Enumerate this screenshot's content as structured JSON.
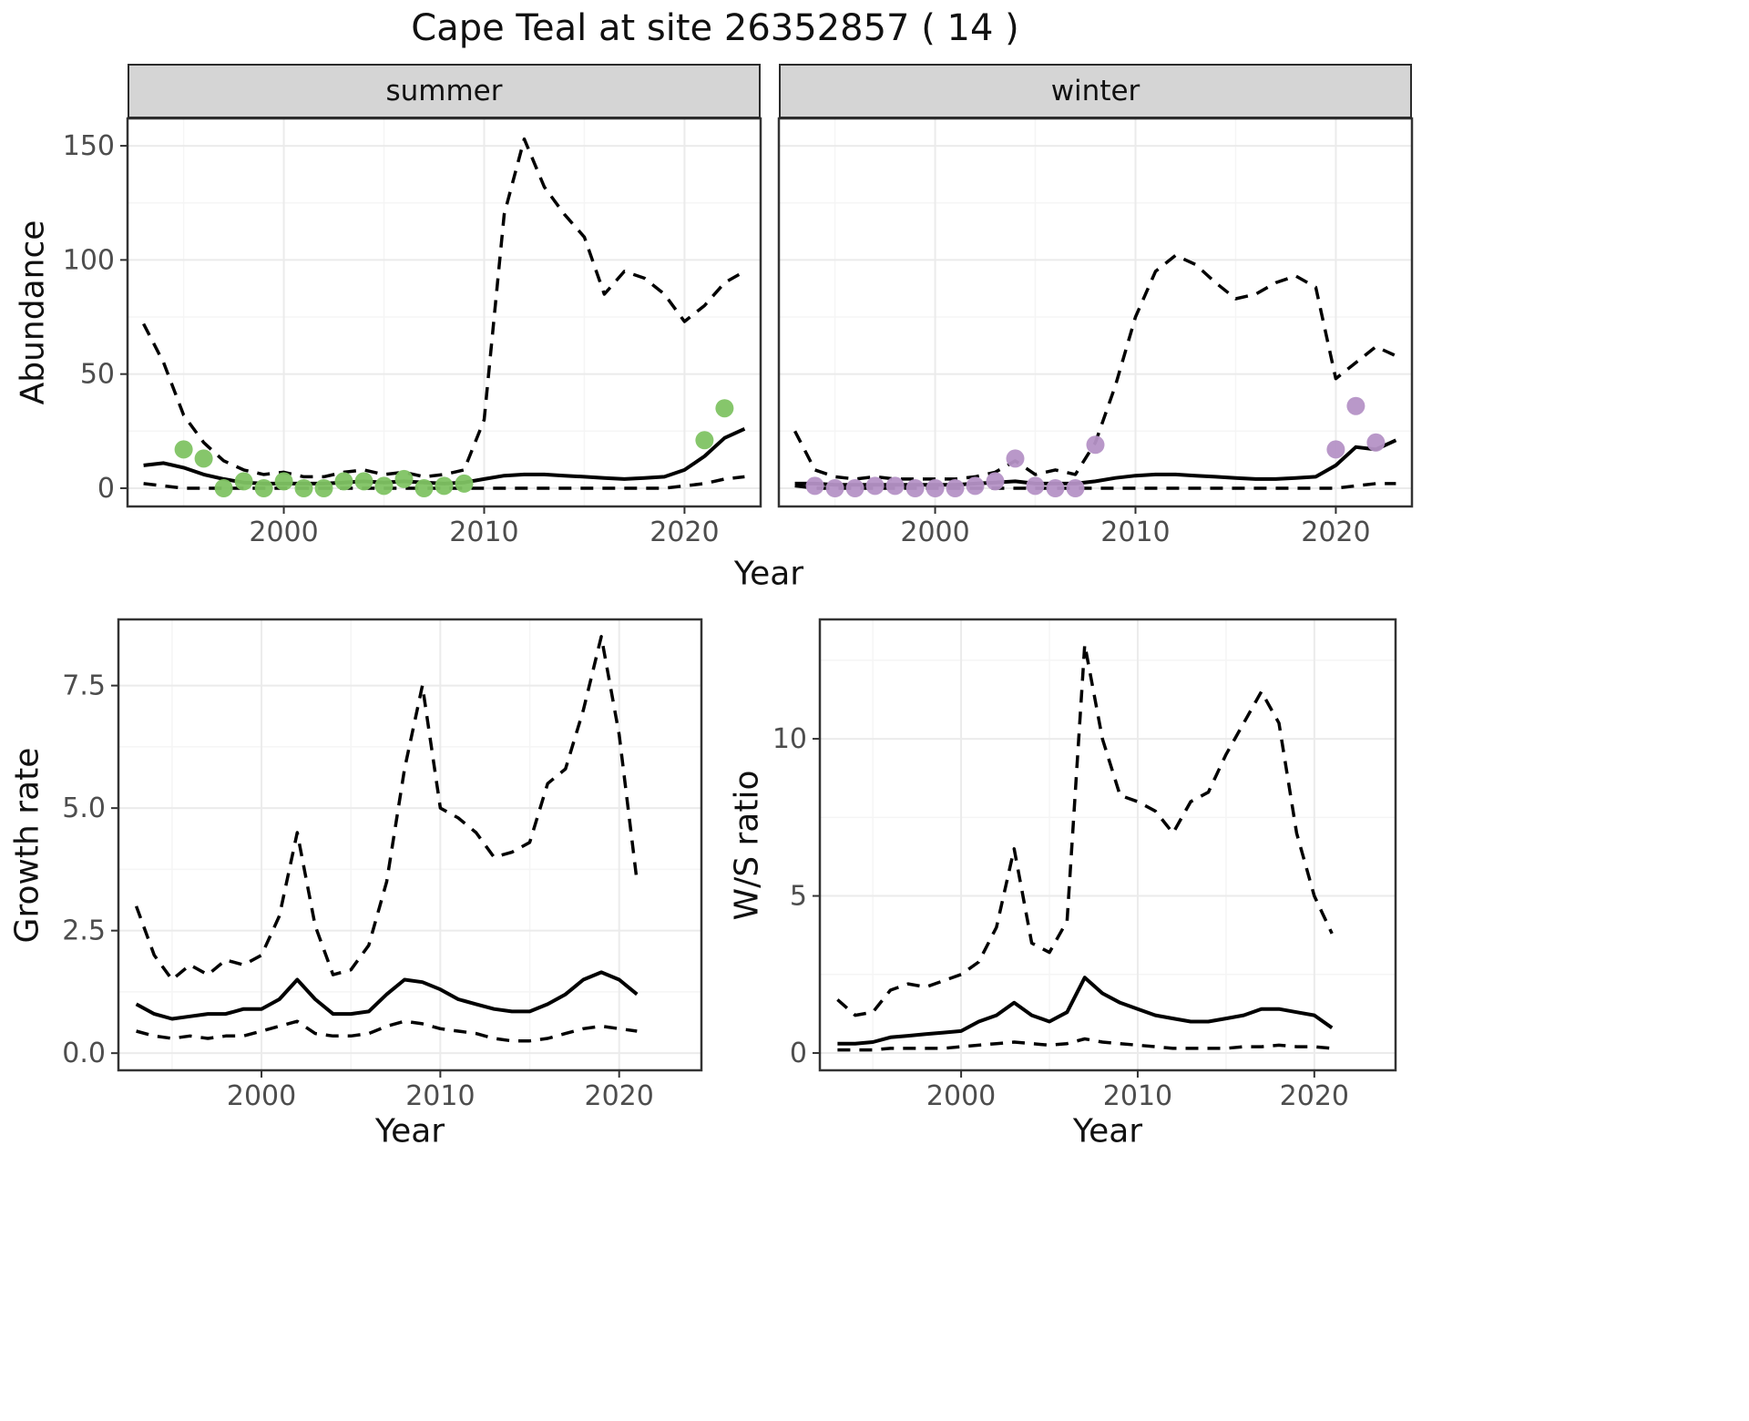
{
  "title": "Cape Teal at site 26352857 ( 14 )",
  "colors": {
    "line": "#000000",
    "summer_points": "#7fc363",
    "winter_points": "#b592c6",
    "grid_major": "#ebebeb",
    "grid_minor": "#f5f5f5",
    "panel_border": "#333333",
    "strip_bg": "#d5d5d5",
    "tick_text": "#4d4d4d"
  },
  "chart_data": [
    {
      "id": "abundance-summer",
      "type": "line",
      "facet_label": "summer",
      "xlabel": "Year",
      "ylabel": "Abundance",
      "xlim": [
        1992.2,
        2023.8
      ],
      "ylim": [
        -8,
        162
      ],
      "xticks": [
        2000,
        2010,
        2020
      ],
      "xtick_labels": [
        "2000",
        "2010",
        "2020"
      ],
      "yticks": [
        0,
        50,
        100,
        150
      ],
      "ytick_labels": [
        "0",
        "50",
        "100",
        "150"
      ],
      "xminor": [
        1995,
        2005,
        2015
      ],
      "yminor": [
        25,
        75,
        125
      ],
      "x": [
        1993,
        1994,
        1995,
        1996,
        1997,
        1998,
        1999,
        2000,
        2001,
        2002,
        2003,
        2004,
        2005,
        2006,
        2007,
        2008,
        2009,
        2010,
        2011,
        2012,
        2013,
        2014,
        2015,
        2016,
        2017,
        2018,
        2019,
        2020,
        2021,
        2022,
        2023
      ],
      "series": [
        {
          "name": "median",
          "style": "solid",
          "y": [
            10,
            11,
            9,
            6,
            4,
            2.5,
            2,
            2,
            2,
            2,
            2.5,
            3,
            2.5,
            3,
            2.5,
            2,
            2.5,
            4,
            5.5,
            6,
            6,
            5.5,
            5,
            4.5,
            4,
            4.5,
            5,
            8,
            14,
            22,
            26
          ]
        },
        {
          "name": "lower-ci",
          "style": "dashed",
          "y": [
            2,
            1,
            0,
            0,
            0,
            0,
            0,
            0,
            0,
            0,
            0,
            0,
            0,
            0,
            0,
            0,
            0,
            0,
            0,
            0,
            0,
            0,
            0,
            0,
            0,
            0,
            0,
            1,
            2,
            4,
            5
          ]
        },
        {
          "name": "upper-ci",
          "style": "dashed",
          "y": [
            72,
            55,
            32,
            20,
            12,
            8,
            6,
            7,
            5,
            5,
            7,
            8,
            6,
            7,
            5,
            6,
            8,
            30,
            120,
            153,
            132,
            120,
            110,
            85,
            95,
            92,
            85,
            73,
            80,
            90,
            95
          ]
        }
      ],
      "points": {
        "name": "observed-counts-summer",
        "color": "#7fc363",
        "x": [
          1995,
          1996,
          1997,
          1998,
          1999,
          2000,
          2001,
          2002,
          2003,
          2004,
          2005,
          2006,
          2007,
          2008,
          2009,
          2021,
          2022
        ],
        "y": [
          17,
          13,
          0,
          3,
          0,
          3,
          0,
          0,
          3,
          3,
          1,
          4,
          0,
          1,
          2,
          21,
          35
        ]
      }
    },
    {
      "id": "abundance-winter",
      "type": "line",
      "facet_label": "winter",
      "xlabel": "Year",
      "ylabel": "Abundance",
      "xlim": [
        1992.2,
        2023.8
      ],
      "ylim": [
        -8,
        162
      ],
      "xticks": [
        2000,
        2010,
        2020
      ],
      "xtick_labels": [
        "2000",
        "2010",
        "2020"
      ],
      "yticks": [
        0,
        50,
        100,
        150
      ],
      "ytick_labels": [
        "0",
        "50",
        "100",
        "150"
      ],
      "xminor": [
        1995,
        2005,
        2015
      ],
      "yminor": [
        25,
        75,
        125
      ],
      "x": [
        1993,
        1994,
        1995,
        1996,
        1997,
        1998,
        1999,
        2000,
        2001,
        2002,
        2003,
        2004,
        2005,
        2006,
        2007,
        2008,
        2009,
        2010,
        2011,
        2012,
        2013,
        2014,
        2015,
        2016,
        2017,
        2018,
        2019,
        2020,
        2021,
        2022,
        2023
      ],
      "series": [
        {
          "name": "median",
          "style": "solid",
          "y": [
            2,
            2,
            1.5,
            1.5,
            1.5,
            1.5,
            1.5,
            1.5,
            1.5,
            2,
            2.5,
            3,
            2,
            2,
            2,
            3,
            4.5,
            5.5,
            6,
            6,
            5.5,
            5,
            4.5,
            4,
            4,
            4.5,
            5,
            10,
            18,
            17,
            21
          ]
        },
        {
          "name": "lower-ci",
          "style": "dashed",
          "y": [
            1,
            0,
            0,
            0,
            0,
            0,
            0,
            0,
            0,
            0,
            0,
            0,
            0,
            0,
            0,
            0,
            0,
            0,
            0,
            0,
            0,
            0,
            0,
            0,
            0,
            0,
            0,
            0,
            1,
            2,
            2
          ]
        },
        {
          "name": "upper-ci",
          "style": "dashed",
          "y": [
            25,
            8,
            5,
            4,
            5,
            4,
            4,
            4,
            4,
            5,
            7,
            12,
            6,
            8,
            6,
            20,
            45,
            75,
            95,
            102,
            98,
            90,
            83,
            85,
            90,
            93,
            88,
            48,
            55,
            62,
            58
          ]
        }
      ],
      "points": {
        "name": "observed-counts-winter",
        "color": "#b592c6",
        "x": [
          1994,
          1995,
          1996,
          1997,
          1998,
          1999,
          2000,
          2001,
          2002,
          2003,
          2004,
          2005,
          2006,
          2007,
          2008,
          2020,
          2021,
          2022
        ],
        "y": [
          1,
          0,
          0,
          1,
          1,
          0,
          0,
          0,
          1,
          3,
          13,
          1,
          0,
          0,
          19,
          17,
          36,
          20
        ]
      }
    },
    {
      "id": "growth-rate",
      "type": "line",
      "xlabel": "Year",
      "ylabel": "Growth rate",
      "xlim": [
        1992,
        2024.6
      ],
      "ylim": [
        -0.35,
        8.85
      ],
      "xticks": [
        2000,
        2010,
        2020
      ],
      "xtick_labels": [
        "2000",
        "2010",
        "2020"
      ],
      "yticks": [
        0,
        2.5,
        5,
        7.5
      ],
      "ytick_labels": [
        "0.0",
        "2.5",
        "5.0",
        "7.5"
      ],
      "xminor": [
        1995,
        2005,
        2015
      ],
      "yminor": [
        1.25,
        3.75,
        6.25
      ],
      "x": [
        1993,
        1994,
        1995,
        1996,
        1997,
        1998,
        1999,
        2000,
        2001,
        2002,
        2003,
        2004,
        2005,
        2006,
        2007,
        2008,
        2009,
        2010,
        2011,
        2012,
        2013,
        2014,
        2015,
        2016,
        2017,
        2018,
        2019,
        2020,
        2021
      ],
      "series": [
        {
          "name": "median",
          "style": "solid",
          "y": [
            1.0,
            0.8,
            0.7,
            0.75,
            0.8,
            0.8,
            0.9,
            0.9,
            1.1,
            1.5,
            1.1,
            0.8,
            0.8,
            0.85,
            1.2,
            1.5,
            1.45,
            1.3,
            1.1,
            1.0,
            0.9,
            0.85,
            0.85,
            1.0,
            1.2,
            1.5,
            1.65,
            1.5,
            1.2
          ]
        },
        {
          "name": "lower-ci",
          "style": "dashed",
          "y": [
            0.45,
            0.35,
            0.3,
            0.35,
            0.3,
            0.35,
            0.35,
            0.45,
            0.55,
            0.65,
            0.4,
            0.35,
            0.35,
            0.4,
            0.55,
            0.65,
            0.6,
            0.5,
            0.45,
            0.4,
            0.3,
            0.25,
            0.25,
            0.3,
            0.4,
            0.5,
            0.55,
            0.5,
            0.45
          ]
        },
        {
          "name": "upper-ci",
          "style": "dashed",
          "y": [
            3.0,
            2.0,
            1.5,
            1.8,
            1.6,
            1.9,
            1.8,
            2.0,
            2.8,
            4.5,
            2.6,
            1.6,
            1.7,
            2.2,
            3.5,
            5.8,
            7.5,
            5.0,
            4.8,
            4.5,
            4.0,
            4.1,
            4.3,
            5.5,
            5.8,
            7.0,
            8.5,
            6.5,
            3.5
          ]
        }
      ]
    },
    {
      "id": "ws-ratio",
      "type": "line",
      "xlabel": "Year",
      "ylabel": "W/S ratio",
      "xlim": [
        1992,
        2024.6
      ],
      "ylim": [
        -0.55,
        13.8
      ],
      "xticks": [
        2000,
        2010,
        2020
      ],
      "xtick_labels": [
        "2000",
        "2010",
        "2020"
      ],
      "yticks": [
        0,
        5,
        10
      ],
      "ytick_labels": [
        "0",
        "5",
        "10"
      ],
      "xminor": [
        1995,
        2005,
        2015
      ],
      "yminor": [
        2.5,
        7.5,
        12.5
      ],
      "x": [
        1993,
        1994,
        1995,
        1996,
        1997,
        1998,
        1999,
        2000,
        2001,
        2002,
        2003,
        2004,
        2005,
        2006,
        2007,
        2008,
        2009,
        2010,
        2011,
        2012,
        2013,
        2014,
        2015,
        2016,
        2017,
        2018,
        2019,
        2020,
        2021
      ],
      "series": [
        {
          "name": "median",
          "style": "solid",
          "y": [
            0.3,
            0.3,
            0.35,
            0.5,
            0.55,
            0.6,
            0.65,
            0.7,
            1.0,
            1.2,
            1.6,
            1.2,
            1.0,
            1.3,
            2.4,
            1.9,
            1.6,
            1.4,
            1.2,
            1.1,
            1.0,
            1.0,
            1.1,
            1.2,
            1.4,
            1.4,
            1.3,
            1.2,
            0.8
          ]
        },
        {
          "name": "lower-ci",
          "style": "dashed",
          "y": [
            0.1,
            0.1,
            0.1,
            0.15,
            0.15,
            0.15,
            0.15,
            0.2,
            0.25,
            0.3,
            0.35,
            0.3,
            0.25,
            0.3,
            0.45,
            0.35,
            0.3,
            0.25,
            0.2,
            0.15,
            0.15,
            0.15,
            0.15,
            0.2,
            0.2,
            0.25,
            0.2,
            0.2,
            0.15
          ]
        },
        {
          "name": "upper-ci",
          "style": "dashed",
          "y": [
            1.7,
            1.2,
            1.3,
            2.0,
            2.2,
            2.1,
            2.3,
            2.5,
            2.9,
            4.0,
            6.5,
            3.5,
            3.2,
            4.2,
            13.0,
            10.0,
            8.2,
            8.0,
            7.7,
            7.0,
            8.0,
            8.3,
            9.5,
            10.5,
            11.5,
            10.5,
            7.0,
            5.0,
            3.8
          ]
        }
      ]
    }
  ]
}
